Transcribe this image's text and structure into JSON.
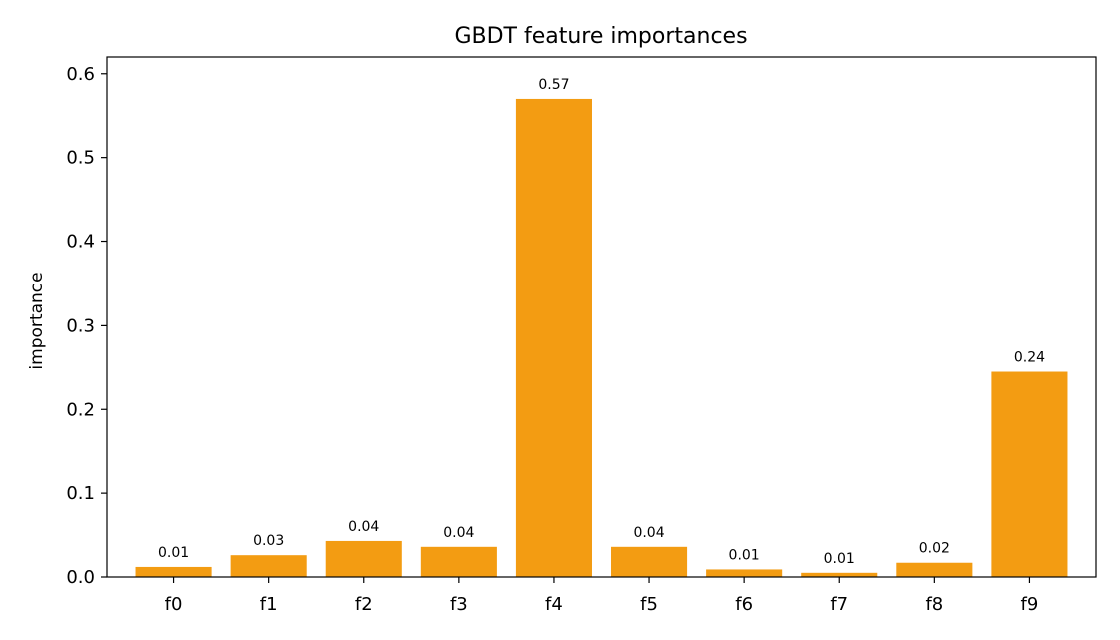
{
  "chart_data": {
    "type": "bar",
    "title": "GBDT feature importances",
    "xlabel": "",
    "ylabel": "importance",
    "categories": [
      "f0",
      "f1",
      "f2",
      "f3",
      "f4",
      "f5",
      "f6",
      "f7",
      "f8",
      "f9"
    ],
    "values": [
      0.012,
      0.026,
      0.043,
      0.036,
      0.57,
      0.036,
      0.009,
      0.005,
      0.017,
      0.245
    ],
    "data_labels": [
      "0.01",
      "0.03",
      "0.04",
      "0.04",
      "0.57",
      "0.04",
      "0.01",
      "0.01",
      "0.02",
      "0.24"
    ],
    "ylim": [
      0,
      0.62
    ],
    "yticks": [
      0.0,
      0.1,
      0.2,
      0.3,
      0.4,
      0.5,
      0.6
    ],
    "ytick_labels": [
      "0.0",
      "0.1",
      "0.2",
      "0.3",
      "0.4",
      "0.5",
      "0.6"
    ],
    "grid": false,
    "bar_color": "#f39c12"
  }
}
